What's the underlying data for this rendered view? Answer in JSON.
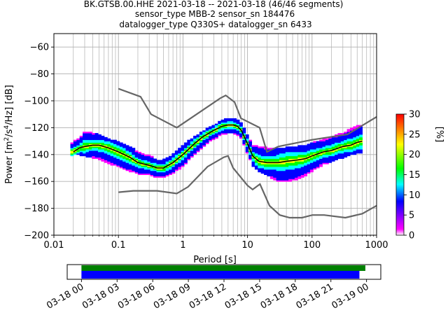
{
  "chart_data": {
    "type": "heatmap",
    "title_lines": [
      "BK.GTSB.00.HHE   2021-03-18 -- 2021-03-18  (46/46 segments)",
      "sensor_type MBB-2 sensor_sn 184476",
      "datalogger_type Q330S+ datalogger_sn 6433"
    ],
    "xlabel": "Period [s]",
    "ylabel": "Power [m²/s⁴/Hz] [dB]",
    "ylabel_parts": {
      "prefix": "Power [m",
      "sq": "2",
      "mid": "/s",
      "four": "4",
      "suffix": "/Hz] [dB]"
    },
    "x_scale": "log",
    "xlim": [
      0.01,
      1000
    ],
    "ylim": [
      -200,
      -50
    ],
    "x_ticks": [
      0.01,
      0.1,
      1,
      10,
      100,
      1000
    ],
    "x_tick_labels": [
      "0.01",
      "0.1",
      "1",
      "10",
      "100",
      "1000"
    ],
    "y_ticks": [
      -200,
      -180,
      -160,
      -140,
      -120,
      -100,
      -80,
      -60
    ],
    "y_tick_labels": [
      "−200",
      "−180",
      "−160",
      "−140",
      "−120",
      "−100",
      "−80",
      "−60"
    ],
    "grid": true,
    "mode_line": {
      "period": [
        0.02,
        0.025,
        0.03,
        0.04,
        0.05,
        0.07,
        0.1,
        0.15,
        0.2,
        0.3,
        0.4,
        0.5,
        0.7,
        1,
        1.5,
        2,
        3,
        4,
        5,
        6,
        7,
        8,
        10,
        12,
        15,
        20,
        30,
        40,
        60,
        80,
        100,
        150,
        200,
        300,
        400,
        500,
        600
      ],
      "power": [
        -138,
        -135,
        -134,
        -133,
        -133,
        -135,
        -138,
        -142,
        -146,
        -148,
        -150,
        -150,
        -146,
        -140,
        -132,
        -127,
        -122,
        -119,
        -118,
        -118,
        -119,
        -122,
        -132,
        -141,
        -145,
        -146,
        -146,
        -145,
        -144,
        -143,
        -141,
        -138,
        -137,
        -134,
        -133,
        -131,
        -130
      ]
    },
    "nlnm": {
      "period": [
        0.1,
        0.17,
        0.4,
        0.8,
        1.2,
        2.4,
        4.3,
        5,
        6,
        10,
        12,
        15.6,
        21.9,
        31.6,
        45,
        70,
        101,
        154,
        328,
        600,
        1000
      ],
      "power": [
        -168,
        -167,
        -167,
        -169,
        -164,
        -149,
        -142,
        -141,
        -150,
        -163,
        -166,
        -162,
        -178,
        -185,
        -187,
        -187,
        -185,
        -185,
        -187,
        -184,
        -178
      ]
    },
    "nhnm": {
      "period": [
        0.1,
        0.22,
        0.32,
        0.8,
        3.8,
        4.6,
        6.3,
        7.9,
        15.4,
        20,
        30,
        100,
        354,
        1000
      ],
      "power": [
        -91,
        -97,
        -110,
        -120,
        -98,
        -96,
        -101,
        -113,
        -120,
        -138,
        -134,
        -129,
        -125,
        -112
      ]
    },
    "density_band": {
      "period": [
        0.018,
        0.02,
        0.025,
        0.03,
        0.04,
        0.05,
        0.07,
        0.1,
        0.15,
        0.2,
        0.3,
        0.4,
        0.5,
        0.7,
        1,
        1.5,
        2,
        3,
        4,
        5,
        6,
        7,
        8,
        10,
        12,
        15,
        20,
        30,
        40,
        60,
        80,
        100,
        150,
        200,
        300,
        400,
        500,
        600
      ],
      "max_power": [
        -133,
        -130,
        -128,
        -123,
        -124,
        -125,
        -128,
        -131,
        -134,
        -138,
        -141,
        -144,
        -144,
        -140,
        -133,
        -127,
        -123,
        -118,
        -115,
        -113,
        -113,
        -114,
        -117,
        -126,
        -133,
        -134,
        -135,
        -136,
        -135,
        -134,
        -133,
        -131,
        -129,
        -127,
        -124,
        -121,
        -119,
        -118
      ],
      "min_power": [
        -141,
        -140,
        -140,
        -141,
        -142,
        -143,
        -146,
        -149,
        -152,
        -154,
        -155,
        -157,
        -157,
        -154,
        -148,
        -140,
        -134,
        -128,
        -125,
        -124,
        -124,
        -125,
        -128,
        -139,
        -148,
        -152,
        -155,
        -160,
        -160,
        -158,
        -155,
        -152,
        -147,
        -145,
        -142,
        -140,
        -139,
        -138
      ]
    },
    "colorbar": {
      "label": "[%]",
      "min": 0,
      "max": 30,
      "ticks": [
        0,
        5,
        10,
        15,
        20,
        25,
        30
      ],
      "tick_labels": [
        "0",
        "5",
        "10",
        "15",
        "20",
        "25",
        "30"
      ],
      "colors": [
        "#ffffff",
        "#ff00ff",
        "#0000ff",
        "#00ffff",
        "#00ff00",
        "#ffff00",
        "#ff0000"
      ]
    },
    "coverage": {
      "tick_labels": [
        "03-18 00",
        "03-18 03",
        "03-18 06",
        "03-18 09",
        "03-18 12",
        "03-18 15",
        "03-18 18",
        "03-18 21",
        "03-19 00"
      ],
      "tick_hours": [
        0,
        3,
        6,
        9,
        12,
        15,
        18,
        21,
        24
      ],
      "xlim_hours": [
        -1.2,
        25.2
      ],
      "green_bar_hours": [
        0,
        23.9
      ],
      "blue_bar_hours": [
        0,
        23.4
      ],
      "green_color": "#008000",
      "blue_color": "#0000ff"
    }
  }
}
